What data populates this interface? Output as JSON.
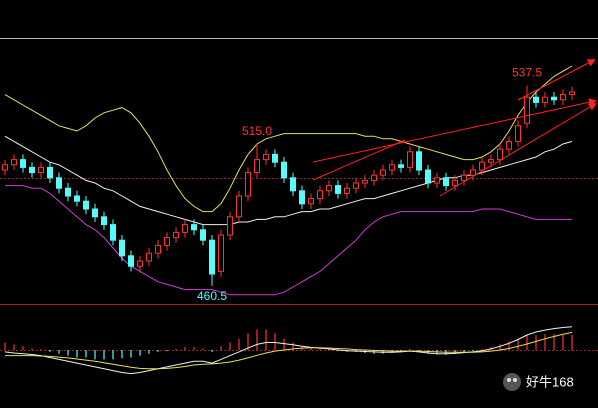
{
  "chart_data": {
    "type": "candlestick",
    "ylim": [
      455,
      555
    ],
    "up_color": "#ff3232",
    "down_color": "#54fcfc",
    "open": [
      505,
      507,
      509,
      506,
      504,
      506,
      502,
      498,
      495,
      493,
      490,
      487,
      484,
      478,
      472,
      468,
      470,
      473,
      476,
      479,
      481,
      484,
      482,
      478,
      466,
      480,
      487,
      495,
      504,
      509,
      511,
      508,
      502,
      497,
      492,
      494,
      497,
      499,
      496,
      498,
      500,
      501,
      503,
      505,
      507,
      506,
      512,
      505,
      500,
      502,
      499,
      501,
      503,
      505,
      508,
      509,
      513,
      516,
      523,
      533,
      531,
      533,
      532,
      534
    ],
    "high": [
      509,
      511,
      511,
      508,
      508,
      508,
      504,
      500,
      497,
      495,
      492,
      489,
      486,
      480,
      474,
      472,
      475,
      478,
      481,
      483,
      486,
      486,
      484,
      480,
      482,
      489,
      497,
      506,
      515,
      513,
      513,
      510,
      504,
      499,
      496,
      499,
      501,
      501,
      500,
      502,
      503,
      505,
      507,
      509,
      509,
      514,
      514,
      507,
      504,
      504,
      503,
      505,
      507,
      510,
      511,
      515,
      518,
      524,
      537.5,
      535,
      535,
      535,
      536,
      537
    ],
    "low": [
      503,
      505,
      504,
      502,
      502,
      500,
      496,
      493,
      491,
      488,
      485,
      482,
      476,
      470,
      466,
      466,
      468,
      471,
      474,
      477,
      479,
      480,
      476,
      460.5,
      464,
      478,
      485,
      493,
      502,
      507,
      506,
      500,
      495,
      490,
      490,
      492,
      495,
      494,
      494,
      496,
      498,
      499,
      501,
      503,
      504,
      504,
      503,
      498,
      498,
      497,
      497,
      499,
      501,
      503,
      506,
      507,
      511,
      514,
      521,
      529,
      529,
      530,
      530,
      532
    ],
    "close": [
      507,
      509,
      506,
      504,
      506,
      502,
      498,
      495,
      493,
      490,
      487,
      484,
      478,
      472,
      468,
      470,
      473,
      476,
      479,
      481,
      484,
      482,
      478,
      465,
      480,
      487,
      495,
      504,
      509,
      511,
      508,
      502,
      497,
      492,
      494,
      497,
      499,
      496,
      498,
      500,
      501,
      503,
      505,
      507,
      506,
      512,
      505,
      500,
      502,
      499,
      501,
      503,
      505,
      508,
      509,
      513,
      516,
      522,
      533,
      531,
      533,
      532,
      534,
      535
    ],
    "bands": [
      {
        "color": "#e8e05a",
        "values": [
          534,
          532,
          530,
          528,
          526,
          524,
          522,
          521,
          520,
          522,
          525,
          527,
          528,
          529,
          527,
          523,
          518,
          512,
          505,
          499,
          494,
          491,
          489,
          489,
          492,
          498,
          505,
          511,
          515,
          517,
          518,
          519,
          519,
          519,
          519,
          519,
          519,
          519,
          519,
          519,
          518,
          518,
          517,
          517,
          516,
          515,
          514,
          513,
          512,
          511,
          510,
          509,
          509,
          510,
          512,
          515,
          520,
          526,
          531,
          535,
          538,
          541,
          543,
          545
        ]
      },
      {
        "color": "#f0f0f0",
        "values": [
          518,
          516,
          514,
          512,
          510,
          508,
          507,
          505,
          503,
          501,
          500,
          498,
          497,
          495,
          493,
          491,
          490,
          489,
          488,
          487,
          486,
          485,
          484,
          484,
          484,
          484,
          485,
          485,
          486,
          486,
          487,
          487,
          488,
          489,
          489,
          490,
          490,
          491,
          492,
          493,
          494,
          494,
          495,
          496,
          497,
          498,
          499,
          500,
          501,
          502,
          502,
          503,
          503,
          504,
          505,
          506,
          507,
          508,
          509,
          510,
          512,
          513,
          515,
          516
        ]
      },
      {
        "color": "#d23cd2",
        "values": [
          499,
          499,
          499,
          498,
          498,
          496,
          493,
          490,
          487,
          484,
          482,
          479,
          475,
          471,
          468,
          466,
          464,
          462,
          461,
          460,
          459,
          459,
          459,
          459,
          458,
          457,
          457,
          457,
          457,
          457,
          457,
          458,
          460,
          462,
          464,
          466,
          469,
          472,
          475,
          478,
          482,
          485,
          487,
          488,
          489,
          489,
          489,
          489,
          489,
          489,
          489,
          489,
          489,
          490,
          490,
          490,
          489,
          488,
          487,
          486,
          486,
          486,
          486,
          486
        ]
      }
    ],
    "annotations": [
      {
        "label": "515.0",
        "value": 515.0,
        "color": "#ff3232"
      },
      {
        "label": "460.5",
        "value": 460.5,
        "color": "#54fcfc"
      },
      {
        "label": "537.5",
        "value": 537.5,
        "color": "#ff3232"
      }
    ],
    "macd": {
      "ylim": [
        -8,
        12
      ],
      "histogram": [
        2,
        1.5,
        1,
        0.5,
        0.3,
        -0.5,
        -1,
        -1.5,
        -2,
        -2,
        -2.5,
        -2.5,
        -2.5,
        -2.2,
        -2,
        -1.5,
        -1,
        -0.5,
        -0.3,
        0.3,
        0.8,
        0.8,
        0.5,
        -0.5,
        1,
        2,
        3,
        4.5,
        5.5,
        5.5,
        4.5,
        3,
        2,
        1,
        0.5,
        0.5,
        0.3,
        -0.3,
        -0.5,
        -0.5,
        -0.8,
        -1,
        -1,
        -0.8,
        -0.5,
        0.3,
        -0.3,
        -1,
        -1.2,
        -1.3,
        -1,
        -0.6,
        -0.3,
        0.3,
        0.8,
        1.5,
        2.3,
        3,
        4,
        4,
        4.2,
        4.2,
        4,
        4
      ],
      "lines": [
        {
          "color": "#f0f0f0",
          "values": [
            -0.5,
            -0.8,
            -1,
            -1.2,
            -1.5,
            -2,
            -2.5,
            -3,
            -3.5,
            -4,
            -4.5,
            -5,
            -5.5,
            -6,
            -6.3,
            -6,
            -5.5,
            -5,
            -4.5,
            -4,
            -3.5,
            -3,
            -3,
            -3.5,
            -2.5,
            -1.5,
            -0.5,
            0.5,
            1.5,
            2,
            2,
            1.7,
            1.4,
            1,
            0.7,
            0.5,
            0.3,
            0,
            -0.2,
            -0.3,
            -0.4,
            -0.5,
            -0.6,
            -0.6,
            -0.5,
            -0.3,
            -0.5,
            -0.8,
            -1,
            -1,
            -0.9,
            -0.7,
            -0.5,
            -0.2,
            0.3,
            1,
            1.8,
            2.8,
            4,
            4.8,
            5.3,
            5.7,
            6,
            6.2
          ]
        },
        {
          "color": "#e8e05a",
          "values": [
            -1.5,
            -1.5,
            -1.5,
            -1.5,
            -1.6,
            -1.7,
            -1.9,
            -2.1,
            -2.4,
            -2.7,
            -3,
            -3.4,
            -3.8,
            -4.2,
            -4.6,
            -4.9,
            -5,
            -5,
            -4.9,
            -4.7,
            -4.4,
            -4,
            -3.8,
            -3.7,
            -3.5,
            -3.2,
            -2.7,
            -2.1,
            -1.4,
            -0.8,
            -0.3,
            0,
            0.3,
            0.5,
            0.6,
            0.6,
            0.5,
            0.4,
            0.3,
            0.1,
            0,
            -0.1,
            -0.2,
            -0.3,
            -0.3,
            -0.3,
            -0.3,
            -0.4,
            -0.5,
            -0.6,
            -0.6,
            -0.6,
            -0.6,
            -0.5,
            -0.3,
            0,
            0.4,
            1,
            1.6,
            2.3,
            3,
            3.6,
            4.2,
            4.7
          ]
        }
      ]
    },
    "watermark": "好牛168"
  }
}
